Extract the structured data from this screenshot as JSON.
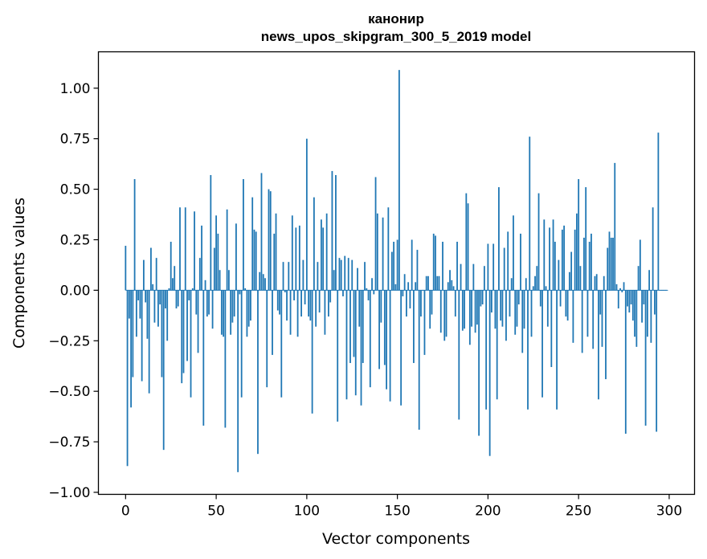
{
  "chart_data": {
    "type": "bar",
    "title": "канонир",
    "subtitle": "news_upos_skipgram_300_5_2019 model",
    "xlabel": "Vector components",
    "ylabel": "Components values",
    "xlim": [
      -15,
      314
    ],
    "ylim": [
      -1.01,
      1.18
    ],
    "xticks": [
      0,
      50,
      100,
      150,
      200,
      250,
      300
    ],
    "xtick_labels": [
      "0",
      "50",
      "100",
      "150",
      "200",
      "250",
      "300"
    ],
    "yticks": [
      -1.0,
      -0.75,
      -0.5,
      -0.25,
      0.0,
      0.25,
      0.5,
      0.75,
      1.0
    ],
    "ytick_labels": [
      "−1.00",
      "−0.75",
      "−0.50",
      "−0.25",
      "0.00",
      "0.25",
      "0.50",
      "0.75",
      "1.00"
    ],
    "grid": false,
    "bar_color": "#1f77b4",
    "x": [
      0,
      1,
      2,
      3,
      4,
      5,
      6,
      7,
      8,
      9,
      10,
      11,
      12,
      13,
      14,
      15,
      16,
      17,
      18,
      19,
      20,
      21,
      22,
      23,
      24,
      25,
      26,
      27,
      28,
      29,
      30,
      31,
      32,
      33,
      34,
      35,
      36,
      37,
      38,
      39,
      40,
      41,
      42,
      43,
      44,
      45,
      46,
      47,
      48,
      49,
      50,
      51,
      52,
      53,
      54,
      55,
      56,
      57,
      58,
      59,
      60,
      61,
      62,
      63,
      64,
      65,
      66,
      67,
      68,
      69,
      70,
      71,
      72,
      73,
      74,
      75,
      76,
      77,
      78,
      79,
      80,
      81,
      82,
      83,
      84,
      85,
      86,
      87,
      88,
      89,
      90,
      91,
      92,
      93,
      94,
      95,
      96,
      97,
      98,
      99,
      100,
      101,
      102,
      103,
      104,
      105,
      106,
      107,
      108,
      109,
      110,
      111,
      112,
      113,
      114,
      115,
      116,
      117,
      118,
      119,
      120,
      121,
      122,
      123,
      124,
      125,
      126,
      127,
      128,
      129,
      130,
      131,
      132,
      133,
      134,
      135,
      136,
      137,
      138,
      139,
      140,
      141,
      142,
      143,
      144,
      145,
      146,
      147,
      148,
      149,
      150,
      151,
      152,
      153,
      154,
      155,
      156,
      157,
      158,
      159,
      160,
      161,
      162,
      163,
      164,
      165,
      166,
      167,
      168,
      169,
      170,
      171,
      172,
      173,
      174,
      175,
      176,
      177,
      178,
      179,
      180,
      181,
      182,
      183,
      184,
      185,
      186,
      187,
      188,
      189,
      190,
      191,
      192,
      193,
      194,
      195,
      196,
      197,
      198,
      199,
      200,
      201,
      202,
      203,
      204,
      205,
      206,
      207,
      208,
      209,
      210,
      211,
      212,
      213,
      214,
      215,
      216,
      217,
      218,
      219,
      220,
      221,
      222,
      223,
      224,
      225,
      226,
      227,
      228,
      229,
      230,
      231,
      232,
      233,
      234,
      235,
      236,
      237,
      238,
      239,
      240,
      241,
      242,
      243,
      244,
      245,
      246,
      247,
      248,
      249,
      250,
      251,
      252,
      253,
      254,
      255,
      256,
      257,
      258,
      259,
      260,
      261,
      262,
      263,
      264,
      265,
      266,
      267,
      268,
      269,
      270,
      271,
      272,
      273,
      274,
      275,
      276,
      277,
      278,
      279,
      280,
      281,
      282,
      283,
      284,
      285,
      286,
      287,
      288,
      289,
      290,
      291,
      292,
      293,
      294,
      295,
      296,
      297,
      298,
      299
    ],
    "values": [
      0.22,
      -0.87,
      -0.14,
      -0.58,
      -0.43,
      0.55,
      -0.23,
      -0.05,
      -0.14,
      -0.45,
      0.15,
      -0.06,
      -0.24,
      -0.51,
      0.21,
      0.03,
      -0.16,
      0.16,
      -0.18,
      -0.07,
      -0.43,
      -0.79,
      -0.09,
      -0.25,
      0.01,
      0.24,
      0.06,
      0.12,
      -0.09,
      -0.08,
      0.41,
      -0.46,
      -0.41,
      0.41,
      -0.35,
      -0.05,
      -0.53,
      0.01,
      0.39,
      -0.12,
      -0.31,
      0.16,
      0.32,
      -0.67,
      0.05,
      -0.13,
      -0.12,
      0.57,
      -0.19,
      0.21,
      0.37,
      0.28,
      0.1,
      -0.22,
      -0.23,
      -0.68,
      0.4,
      0.1,
      -0.22,
      -0.16,
      -0.13,
      0.33,
      -0.9,
      -0.02,
      -0.53,
      0.55,
      0.01,
      -0.23,
      -0.18,
      -0.15,
      0.46,
      0.3,
      0.29,
      -0.81,
      0.09,
      0.58,
      0.08,
      0.06,
      -0.48,
      0.5,
      0.49,
      -0.32,
      0.28,
      0.38,
      -0.1,
      -0.12,
      -0.53,
      0.14,
      -0.01,
      -0.15,
      0.14,
      -0.22,
      0.37,
      -0.05,
      0.31,
      -0.23,
      0.32,
      -0.13,
      0.15,
      -0.07,
      0.75,
      -0.13,
      -0.15,
      -0.61,
      0.46,
      -0.18,
      0.14,
      -0.11,
      0.35,
      0.31,
      -0.22,
      0.38,
      -0.13,
      -0.06,
      0.59,
      0.1,
      0.57,
      -0.65,
      0.16,
      0.15,
      -0.03,
      0.17,
      -0.54,
      0.16,
      -0.36,
      0.15,
      -0.33,
      -0.52,
      0.11,
      -0.18,
      -0.57,
      -0.36,
      0.14,
      0.01,
      -0.05,
      -0.48,
      0.06,
      -0.02,
      0.56,
      0.38,
      -0.39,
      -0.16,
      0.36,
      -0.37,
      -0.49,
      0.41,
      -0.55,
      0.19,
      0.24,
      0.03,
      0.25,
      1.09,
      -0.57,
      -0.03,
      0.08,
      -0.13,
      0.04,
      -0.09,
      0.25,
      -0.36,
      0.04,
      0.2,
      -0.69,
      -0.13,
      0.0,
      -0.32,
      0.07,
      0.07,
      -0.19,
      -0.12,
      0.28,
      0.27,
      0.07,
      0.07,
      -0.21,
      0.24,
      -0.25,
      -0.23,
      0.04,
      0.1,
      0.05,
      0.02,
      -0.13,
      0.24,
      -0.64,
      0.13,
      -0.2,
      -0.19,
      0.48,
      0.43,
      -0.27,
      -0.18,
      0.13,
      -0.21,
      -0.17,
      -0.72,
      -0.08,
      -0.07,
      0.12,
      -0.59,
      0.23,
      -0.82,
      -0.11,
      0.23,
      -0.19,
      -0.54,
      0.51,
      -0.15,
      -0.18,
      0.21,
      -0.25,
      0.29,
      -0.13,
      0.06,
      0.37,
      -0.22,
      -0.18,
      -0.07,
      0.28,
      -0.31,
      -0.19,
      0.06,
      -0.59,
      0.76,
      -0.23,
      0.02,
      0.07,
      0.12,
      0.48,
      -0.08,
      -0.53,
      0.35,
      0.02,
      -0.18,
      0.31,
      -0.38,
      0.35,
      0.24,
      -0.59,
      0.15,
      -0.08,
      0.3,
      0.32,
      -0.13,
      -0.15,
      0.09,
      0.19,
      -0.26,
      0.3,
      0.38,
      0.55,
      0.12,
      -0.31,
      0.26,
      0.51,
      -0.23,
      0.24,
      0.28,
      -0.29,
      0.07,
      0.08,
      -0.54,
      -0.12,
      -0.28,
      0.07,
      -0.44,
      0.21,
      0.29,
      0.26,
      0.26,
      0.63,
      0.03,
      -0.09,
      0.01,
      -0.01,
      0.04,
      -0.71,
      -0.08,
      -0.11,
      -0.07,
      -0.15,
      -0.23,
      -0.28,
      0.12,
      0.25,
      -0.16,
      -0.07,
      -0.67,
      -0.23,
      0.1,
      -0.26,
      0.41,
      -0.12,
      -0.7,
      0.78,
      0.0,
      0.0,
      0.0,
      0.0,
      0.0
    ]
  }
}
